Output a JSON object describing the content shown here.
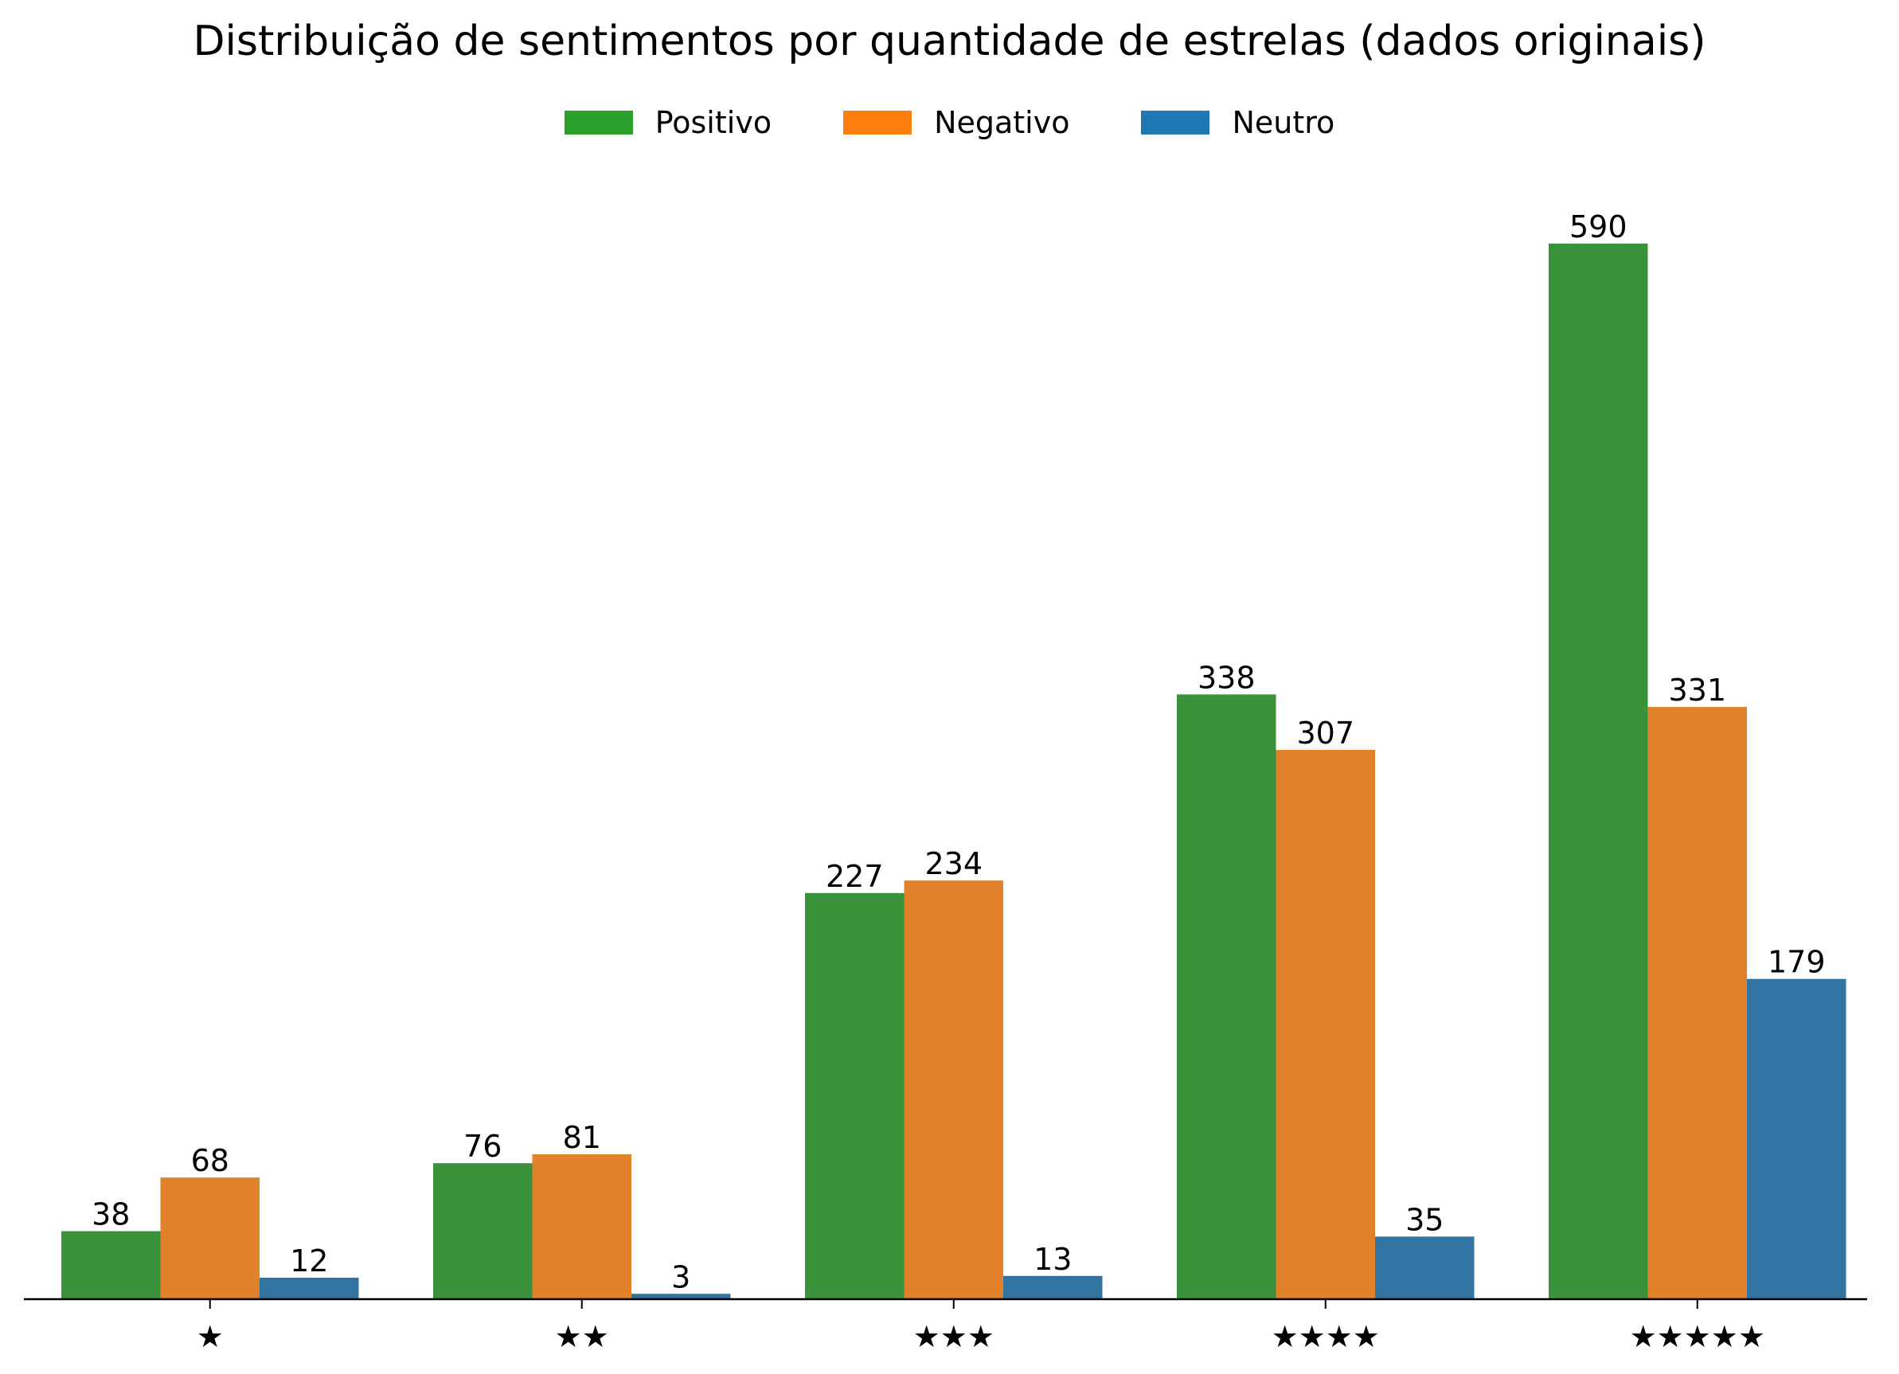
{
  "chart_data": {
    "type": "bar",
    "title": "Distribuição de sentimentos por quantidade de estrelas (dados originais)",
    "categories": [
      "★",
      "★★",
      "★★★",
      "★★★★",
      "★★★★★"
    ],
    "series": [
      {
        "name": "Positivo",
        "color": "#3a923a",
        "legend_color": "#2ca02c",
        "values": [
          38,
          76,
          227,
          338,
          590
        ]
      },
      {
        "name": "Negativo",
        "color": "#e1812c",
        "legend_color": "#ff7f0e",
        "values": [
          68,
          81,
          234,
          307,
          331
        ]
      },
      {
        "name": "Neutro",
        "color": "#3274a1",
        "legend_color": "#1f77b4",
        "values": [
          12,
          3,
          13,
          35,
          179
        ]
      }
    ],
    "xlabel": "",
    "ylabel": "",
    "ylim": [
      0,
      610
    ],
    "legend_position": "top-center",
    "grid": false,
    "data_labels": true
  }
}
